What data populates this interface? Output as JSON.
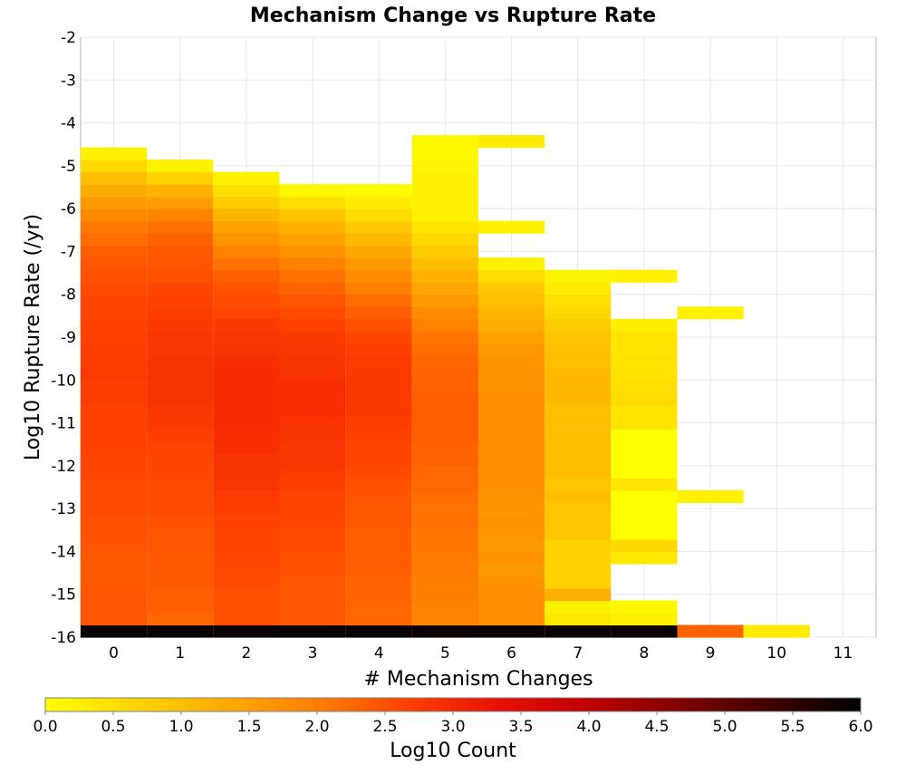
{
  "chart_data": {
    "type": "heatmap",
    "title": "Mechanism Change vs Rupture Rate",
    "xlabel": "# Mechanism Changes",
    "ylabel": "Log10 Rupture Rate (/yr)",
    "x_ticks": [
      "0",
      "1",
      "2",
      "3",
      "4",
      "5",
      "6",
      "7",
      "8",
      "9",
      "10",
      "11"
    ],
    "y_ticks": [
      "-2",
      "-3",
      "-4",
      "-5",
      "-6",
      "-7",
      "-8",
      "-9",
      "-10",
      "-11",
      "-12",
      "-13",
      "-14",
      "-15",
      "-16"
    ],
    "xlim": [
      -0.5,
      11.5
    ],
    "ylim": [
      -16.0,
      -2.0
    ],
    "bin_height": 0.2857,
    "grid": true,
    "colorbar": {
      "label": "Log10 Count",
      "range": [
        0.0,
        6.0
      ],
      "ticks": [
        "0.0",
        "0.5",
        "1.0",
        "1.5",
        "2.0",
        "2.5",
        "3.0",
        "3.5",
        "4.0",
        "4.5",
        "5.0",
        "5.5",
        "6.0"
      ],
      "colors": [
        "#ffff00",
        "#ffd400",
        "#ffaa00",
        "#ff7f00",
        "#ff4000",
        "#e81000",
        "#c00000",
        "#800000",
        "#400000",
        "#000000"
      ]
    },
    "columns": [
      {
        "x": 0,
        "bottom": -16.0,
        "values": [
          5.9,
          2.45,
          2.45,
          2.45,
          2.4,
          2.4,
          2.4,
          2.45,
          2.5,
          2.5,
          2.55,
          2.55,
          2.55,
          2.6,
          2.6,
          2.65,
          2.65,
          2.65,
          2.65,
          2.7,
          2.7,
          2.75,
          2.7,
          2.7,
          2.65,
          2.65,
          2.6,
          2.6,
          2.55,
          2.5,
          2.45,
          2.35,
          2.2,
          2.05,
          1.85,
          1.6,
          1.3,
          1.0,
          0.6,
          0.2
        ]
      },
      {
        "x": 1,
        "bottom": -16.0,
        "values": [
          5.9,
          2.25,
          2.35,
          2.35,
          2.4,
          2.4,
          2.4,
          2.45,
          2.45,
          2.5,
          2.55,
          2.55,
          2.55,
          2.6,
          2.6,
          2.65,
          2.7,
          2.75,
          2.8,
          2.85,
          2.85,
          2.85,
          2.85,
          2.8,
          2.8,
          2.75,
          2.7,
          2.65,
          2.6,
          2.5,
          2.45,
          2.4,
          2.3,
          2.15,
          1.9,
          1.55,
          1.2,
          0.7,
          0.2
        ]
      },
      {
        "x": 2,
        "bottom": -16.0,
        "values": [
          5.9,
          2.5,
          2.5,
          2.5,
          2.55,
          2.55,
          2.6,
          2.6,
          2.6,
          2.65,
          2.7,
          2.75,
          2.8,
          2.85,
          2.85,
          2.9,
          2.9,
          2.95,
          2.95,
          2.95,
          2.95,
          2.95,
          2.9,
          2.85,
          2.8,
          2.75,
          2.65,
          2.55,
          2.45,
          2.35,
          2.15,
          1.95,
          1.7,
          1.45,
          1.15,
          0.8,
          0.5,
          0.2
        ]
      },
      {
        "x": 3,
        "bottom": -16.0,
        "values": [
          5.9,
          2.45,
          2.45,
          2.45,
          2.45,
          2.5,
          2.5,
          2.55,
          2.55,
          2.6,
          2.6,
          2.65,
          2.7,
          2.75,
          2.8,
          2.8,
          2.85,
          2.85,
          2.9,
          2.9,
          2.9,
          2.85,
          2.85,
          2.8,
          2.75,
          2.65,
          2.55,
          2.45,
          2.3,
          2.15,
          1.95,
          1.7,
          1.45,
          1.2,
          0.9,
          0.5,
          0.1
        ]
      },
      {
        "x": 4,
        "bottom": -16.0,
        "values": [
          5.9,
          2.25,
          2.25,
          2.3,
          2.3,
          2.35,
          2.35,
          2.35,
          2.35,
          2.4,
          2.4,
          2.45,
          2.5,
          2.55,
          2.6,
          2.6,
          2.65,
          2.7,
          2.75,
          2.75,
          2.75,
          2.75,
          2.75,
          2.7,
          2.6,
          2.5,
          2.35,
          2.2,
          2.0,
          1.8,
          1.6,
          1.35,
          1.1,
          0.85,
          0.55,
          0.3,
          0.05
        ]
      },
      {
        "x": 5,
        "bottom": -16.0,
        "values": [
          5.9,
          1.95,
          1.95,
          2.0,
          2.0,
          2.05,
          2.05,
          2.1,
          2.1,
          2.15,
          2.15,
          2.2,
          2.25,
          2.25,
          2.3,
          2.3,
          2.35,
          2.35,
          2.35,
          2.35,
          2.3,
          2.3,
          2.25,
          2.2,
          2.1,
          1.95,
          1.8,
          1.6,
          1.4,
          1.2,
          1.0,
          0.8,
          0.6,
          0.4,
          0.25,
          0.2,
          0.2,
          0.2,
          0.15,
          0.1,
          0.1
        ]
      },
      {
        "x": 6,
        "bottom": -16.0,
        "values": [
          5.9,
          1.75,
          1.75,
          1.75,
          1.7,
          1.6,
          1.7,
          1.6,
          1.65,
          1.7,
          1.65,
          1.7,
          1.75,
          1.75,
          1.75,
          1.75,
          1.75,
          1.75,
          1.75,
          1.75,
          1.7,
          1.7,
          1.65,
          1.6,
          1.45,
          1.3,
          1.15,
          1.0,
          0.85,
          0.55,
          0.2,
          null,
          null,
          0.2,
          null,
          null,
          null,
          null,
          null,
          null,
          0.3
        ]
      },
      {
        "x": 7,
        "bottom": -16.0,
        "values": [
          5.9,
          0.35,
          0.2,
          1.25,
          0.7,
          0.7,
          0.7,
          0.7,
          0.9,
          0.9,
          0.9,
          1.0,
          0.9,
          1.0,
          1.0,
          1.0,
          1.0,
          1.05,
          1.0,
          1.1,
          1.1,
          1.1,
          1.0,
          1.0,
          0.9,
          0.8,
          0.6,
          0.5,
          0.3,
          0.15
        ]
      },
      {
        "x": 8,
        "bottom": -16.0,
        "values": [
          5.9,
          0.2,
          0.1,
          null,
          null,
          null,
          0.35,
          0.6,
          0.0,
          0.0,
          0.0,
          0.0,
          0.4,
          0.0,
          0.0,
          0.0,
          0.0,
          0.4,
          0.4,
          0.55,
          0.5,
          0.45,
          0.45,
          0.4,
          0.4,
          0.25,
          null,
          null,
          null,
          0.2
        ]
      },
      {
        "x": 9,
        "bottom": -16.0,
        "values": [
          2.3,
          null,
          null,
          null,
          null,
          null,
          null,
          null,
          null,
          null,
          null,
          0.2,
          null,
          null,
          null,
          null,
          null,
          null,
          null,
          null,
          null,
          null,
          null,
          null,
          null,
          null,
          0.2
        ]
      },
      {
        "x": 10,
        "bottom": -16.0,
        "values": [
          0.3
        ]
      }
    ]
  }
}
